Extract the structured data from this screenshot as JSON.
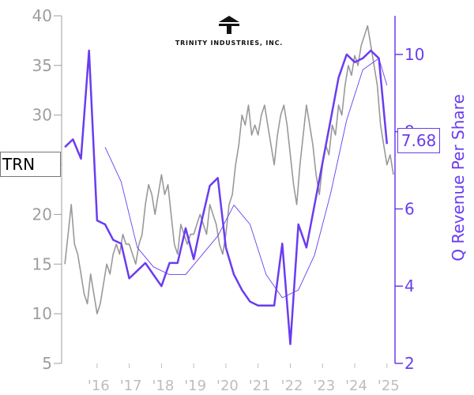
{
  "chart_data": {
    "type": "line",
    "ticker": "TRN",
    "company": "TRINITY INDUSTRIES, INC.",
    "xlabel": "",
    "x_ticks": [
      "'16",
      "'17",
      "'18",
      "'19",
      "'20",
      "'21",
      "'22",
      "'23",
      "'24",
      "'25"
    ],
    "left_axis": {
      "label": "",
      "ylim": [
        5,
        40
      ],
      "ticks": [
        5,
        10,
        15,
        20,
        25,
        30,
        35,
        40
      ]
    },
    "right_axis": {
      "label": "Q Revenue Per Share",
      "ylim": [
        2,
        11
      ],
      "ticks": [
        2,
        4,
        6,
        8,
        10
      ]
    },
    "last_value": "7.68",
    "colors": {
      "price": "#999999",
      "revenue": "#6a3cf0",
      "axis_left": "#9e9e9e",
      "axis_right": "#6a3cf0"
    },
    "series": [
      {
        "role": "price",
        "axis": "left",
        "x": [
          2015.0,
          2015.1,
          2015.2,
          2015.3,
          2015.4,
          2015.5,
          2015.6,
          2015.7,
          2015.8,
          2015.9,
          2016.0,
          2016.1,
          2016.2,
          2016.3,
          2016.4,
          2016.5,
          2016.6,
          2016.7,
          2016.8,
          2016.9,
          2017.0,
          2017.1,
          2017.2,
          2017.3,
          2017.4,
          2017.5,
          2017.6,
          2017.7,
          2017.8,
          2017.9,
          2018.0,
          2018.1,
          2018.2,
          2018.3,
          2018.4,
          2018.5,
          2018.6,
          2018.7,
          2018.8,
          2018.9,
          2019.0,
          2019.1,
          2019.2,
          2019.3,
          2019.4,
          2019.5,
          2019.6,
          2019.7,
          2019.8,
          2019.9,
          2020.0,
          2020.1,
          2020.2,
          2020.3,
          2020.4,
          2020.5,
          2020.6,
          2020.7,
          2020.8,
          2020.9,
          2021.0,
          2021.1,
          2021.2,
          2021.3,
          2021.4,
          2021.5,
          2021.6,
          2021.7,
          2021.8,
          2021.9,
          2022.0,
          2022.1,
          2022.2,
          2022.3,
          2022.4,
          2022.5,
          2022.6,
          2022.7,
          2022.8,
          2022.9,
          2023.0,
          2023.1,
          2023.2,
          2023.3,
          2023.4,
          2023.5,
          2023.6,
          2023.7,
          2023.8,
          2023.9,
          2024.0,
          2024.1,
          2024.2,
          2024.3,
          2024.4,
          2024.5,
          2024.6,
          2024.7,
          2024.8,
          2024.9,
          2025.0,
          2025.1,
          2025.2
        ],
        "values": [
          15,
          18,
          21,
          17,
          16,
          14,
          12,
          11,
          14,
          12,
          10,
          11,
          13,
          15,
          14,
          16,
          17,
          16,
          18,
          17,
          17,
          16,
          15,
          17,
          18,
          21,
          23,
          22,
          20,
          22,
          24,
          22,
          23,
          20,
          17,
          16,
          19,
          18,
          17,
          18,
          18,
          19,
          20,
          19,
          18,
          21,
          20,
          19,
          17,
          16,
          18,
          21,
          22,
          25,
          27,
          30,
          29,
          31,
          28,
          29,
          28,
          30,
          31,
          29,
          27,
          25,
          28,
          30,
          31,
          29,
          26,
          23,
          21,
          25,
          28,
          31,
          29,
          27,
          24,
          22,
          25,
          27,
          26,
          29,
          28,
          31,
          30,
          33,
          35,
          34,
          36,
          35,
          37,
          38,
          39,
          37,
          35,
          33,
          29,
          27,
          25,
          26,
          24
        ]
      },
      {
        "role": "revenue",
        "axis": "right",
        "x": [
          2015.0,
          2015.25,
          2015.5,
          2015.75,
          2016.0,
          2016.25,
          2016.5,
          2016.75,
          2017.0,
          2017.25,
          2017.5,
          2017.75,
          2018.0,
          2018.25,
          2018.5,
          2018.75,
          2019.0,
          2019.25,
          2019.5,
          2019.75,
          2020.0,
          2020.25,
          2020.5,
          2020.75,
          2021.0,
          2021.25,
          2021.5,
          2021.75,
          2022.0,
          2022.25,
          2022.5,
          2022.75,
          2023.0,
          2023.25,
          2023.5,
          2023.75,
          2024.0,
          2024.25,
          2024.5,
          2024.75,
          2025.0
        ],
        "values": [
          7.6,
          7.8,
          7.3,
          10.1,
          5.7,
          5.6,
          5.2,
          5.1,
          4.2,
          4.4,
          4.6,
          4.3,
          4.0,
          4.6,
          4.6,
          5.5,
          4.7,
          5.7,
          6.6,
          6.8,
          5.0,
          4.3,
          3.9,
          3.6,
          3.5,
          3.5,
          3.5,
          5.1,
          2.5,
          5.6,
          5.0,
          6.1,
          7.2,
          8.3,
          9.4,
          10.0,
          9.8,
          9.9,
          10.1,
          9.9,
          7.68
        ]
      },
      {
        "role": "revenue-trend",
        "axis": "right",
        "x": [
          2016.25,
          2016.75,
          2017.25,
          2017.75,
          2018.25,
          2018.75,
          2019.25,
          2019.75,
          2020.25,
          2020.75,
          2021.25,
          2021.75,
          2022.25,
          2022.75,
          2023.25,
          2023.75,
          2024.25,
          2024.75,
          2025.0
        ],
        "values": [
          7.6,
          6.7,
          5.0,
          4.5,
          4.3,
          4.3,
          4.8,
          5.3,
          6.1,
          5.6,
          4.3,
          3.7,
          3.9,
          4.8,
          6.4,
          8.3,
          9.6,
          9.9,
          9.2
        ]
      }
    ]
  }
}
